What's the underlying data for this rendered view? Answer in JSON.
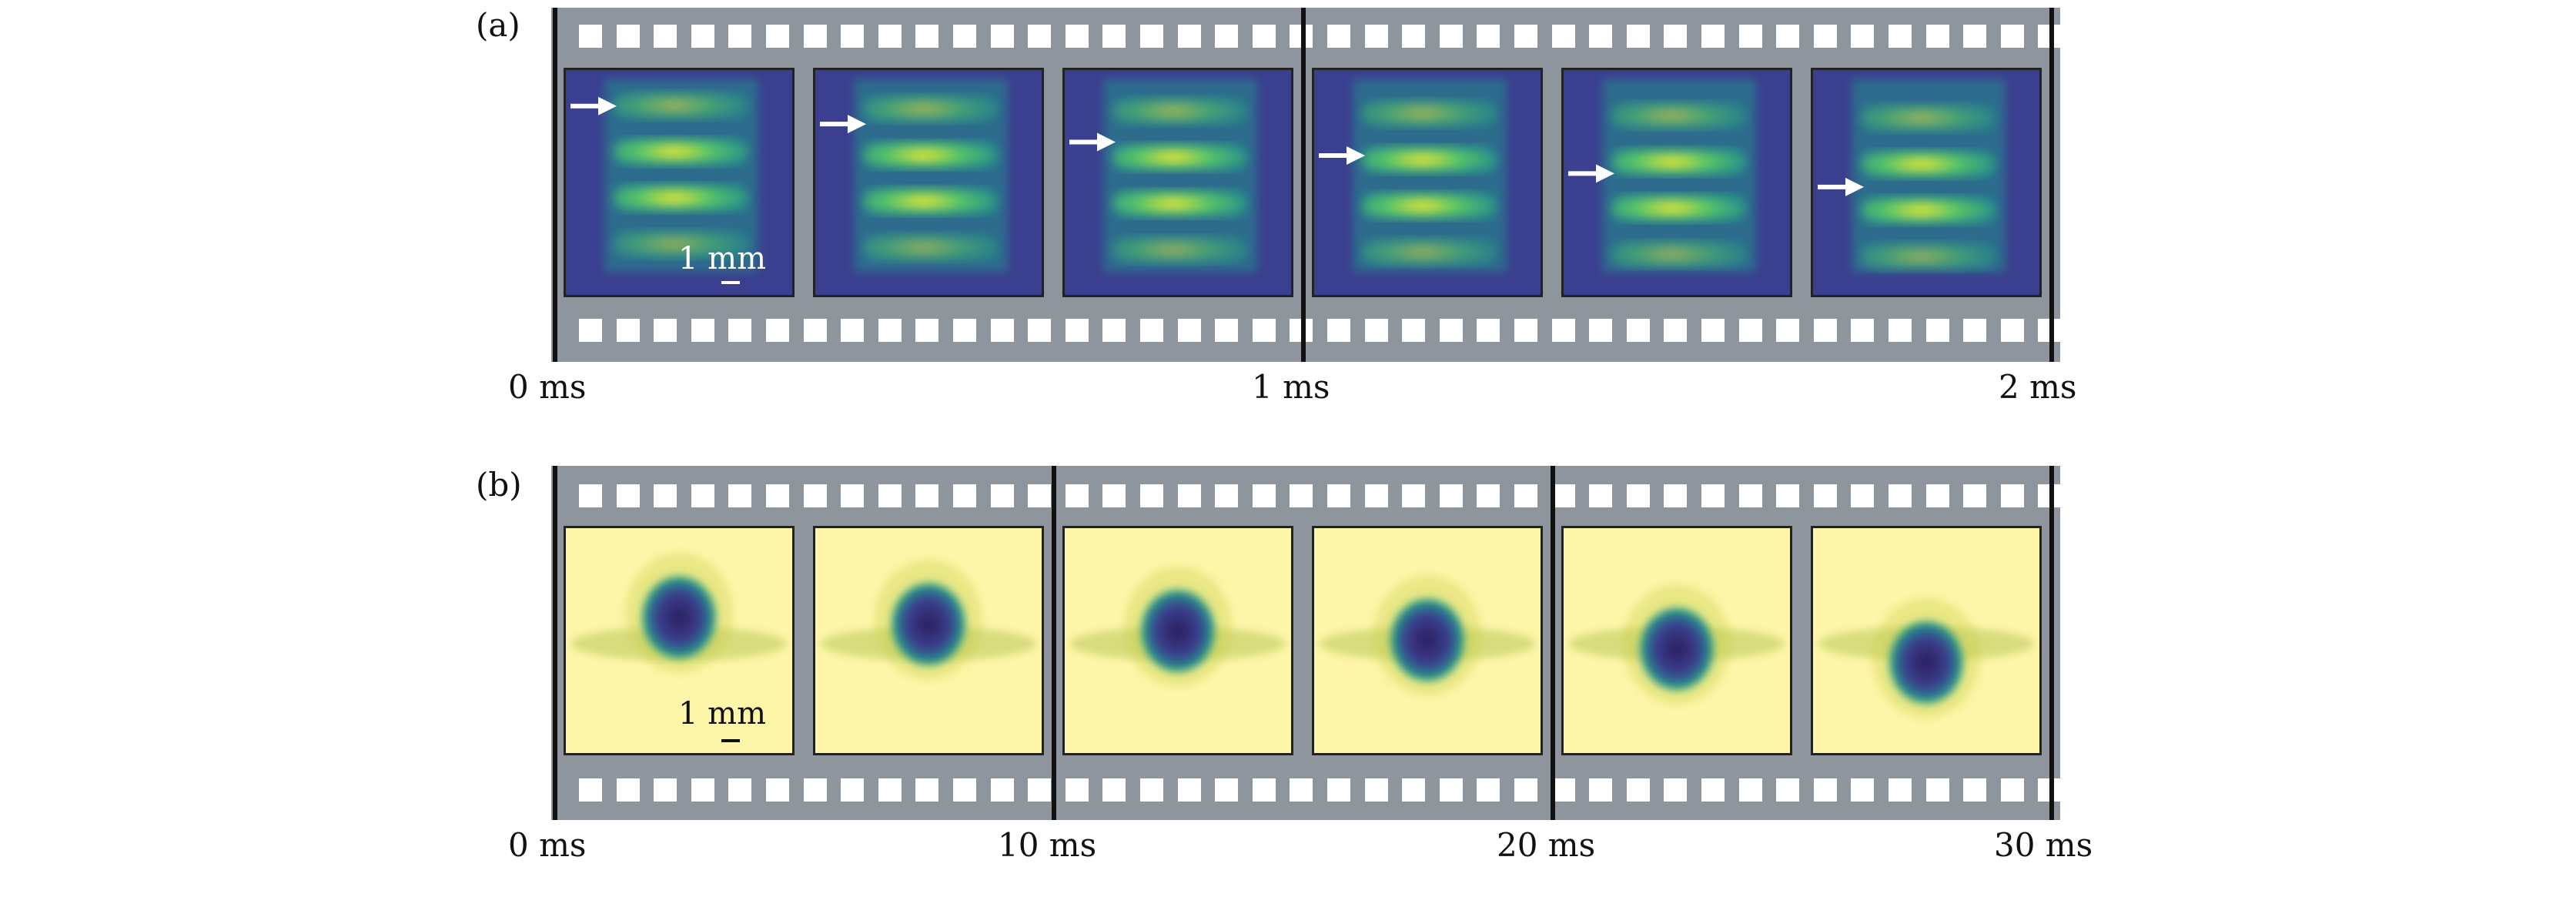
{
  "panels": [
    {
      "label": "(a)",
      "scale_label": "1 mm",
      "scale_color": "#ffffff",
      "time_labels": [
        "0 ms",
        "1 ms",
        "2 ms"
      ],
      "frame_style": "fringes",
      "frames": [
        {
          "arrow_level": 0.16,
          "fringe_shift": 0.0
        },
        {
          "arrow_level": 0.24,
          "fringe_shift": 0.06
        },
        {
          "arrow_level": 0.32,
          "fringe_shift": 0.1
        },
        {
          "arrow_level": 0.38,
          "fringe_shift": 0.14
        },
        {
          "arrow_level": 0.46,
          "fringe_shift": 0.18
        },
        {
          "arrow_level": 0.52,
          "fringe_shift": 0.22
        }
      ]
    },
    {
      "label": "(b)",
      "scale_label": "1 mm",
      "scale_color": "#111111",
      "time_labels": [
        "0 ms",
        "10 ms",
        "20 ms",
        "30 ms"
      ],
      "frame_style": "droplet",
      "frames": [
        {
          "blob_drop": 0.0
        },
        {
          "blob_drop": 0.03
        },
        {
          "blob_drop": 0.06
        },
        {
          "blob_drop": 0.1
        },
        {
          "blob_drop": 0.14
        },
        {
          "blob_drop": 0.2
        }
      ]
    }
  ],
  "colors": {
    "film": "#8e959c",
    "viridis_dark": "#3b3f8f",
    "viridis_mid": "#21918c",
    "viridis_light": "#5ec962",
    "viridis_bright": "#fde725",
    "background_bright": "#fdf28a"
  }
}
